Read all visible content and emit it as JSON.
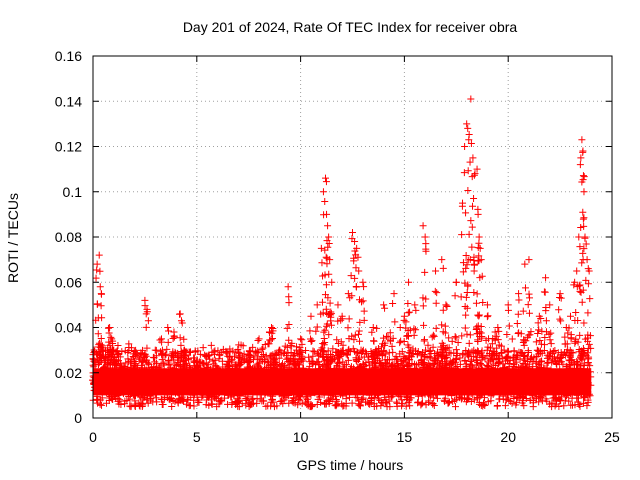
{
  "chart_data": {
    "type": "scatter",
    "title": "Day 201 of 2024, Rate Of TEC Index for receiver obra",
    "xlabel": "GPS time / hours",
    "ylabel": "ROTI / TECUs",
    "xlim": [
      0,
      25
    ],
    "ylim": [
      0,
      0.16
    ],
    "xticks": [
      0,
      5,
      10,
      15,
      20,
      25
    ],
    "xtick_labels": [
      "0",
      "5",
      "10",
      "15",
      "20",
      "25"
    ],
    "yticks": [
      0,
      0.02,
      0.04,
      0.06,
      0.08,
      0.1,
      0.12,
      0.14,
      0.16
    ],
    "ytick_labels": [
      "0",
      "0.02",
      "0.04",
      "0.06",
      "0.08",
      "0.1",
      "0.12",
      "0.14",
      "0.16"
    ],
    "grid": true,
    "marker": "+",
    "color": "#ff0000",
    "series": [
      {
        "name": "ROTI",
        "x": [
          0.05,
          0.2,
          0.3,
          0.35,
          0.4,
          0.5,
          0.8,
          0.9,
          1.0,
          1.1,
          1.2,
          1.5,
          2.0,
          2.5,
          2.6,
          3.0,
          3.3,
          3.6,
          3.9,
          4.2,
          4.3,
          4.4,
          5.0,
          5.5,
          6.0,
          6.5,
          7.0,
          7.5,
          8.0,
          8.5,
          8.6,
          9.0,
          9.4,
          9.5,
          9.8,
          10.0,
          10.5,
          10.8,
          11.0,
          11.1,
          11.2,
          11.25,
          11.3,
          11.35,
          11.4,
          11.5,
          11.8,
          12.0,
          12.3,
          12.5,
          12.6,
          12.7,
          12.8,
          13.0,
          13.5,
          14.0,
          14.5,
          14.8,
          15.0,
          15.2,
          15.5,
          15.9,
          16.0,
          16.5,
          16.8,
          17.0,
          17.5,
          17.8,
          17.9,
          18.0,
          18.05,
          18.1,
          18.2,
          18.3,
          18.4,
          18.5,
          18.55,
          18.6,
          18.65,
          18.7,
          19.0,
          19.5,
          20.0,
          20.5,
          20.8,
          21.0,
          21.5,
          21.8,
          22.0,
          22.5,
          22.8,
          23.0,
          23.2,
          23.3,
          23.4,
          23.5,
          23.55,
          23.6,
          23.65,
          23.7,
          23.8,
          23.9
        ],
        "y": [
          0.015,
          0.068,
          0.072,
          0.058,
          0.055,
          0.022,
          0.04,
          0.035,
          0.03,
          0.025,
          0.02,
          0.022,
          0.025,
          0.052,
          0.048,
          0.03,
          0.035,
          0.04,
          0.038,
          0.046,
          0.042,
          0.03,
          0.025,
          0.02,
          0.022,
          0.025,
          0.02,
          0.028,
          0.035,
          0.038,
          0.04,
          0.03,
          0.058,
          0.032,
          0.03,
          0.035,
          0.045,
          0.05,
          0.075,
          0.1,
          0.106,
          0.09,
          0.085,
          0.08,
          0.07,
          0.06,
          0.05,
          0.045,
          0.055,
          0.082,
          0.078,
          0.075,
          0.065,
          0.06,
          0.04,
          0.05,
          0.055,
          0.04,
          0.045,
          0.06,
          0.05,
          0.085,
          0.08,
          0.065,
          0.07,
          0.05,
          0.06,
          0.095,
          0.12,
          0.13,
          0.128,
          0.123,
          0.141,
          0.115,
          0.108,
          0.11,
          0.09,
          0.08,
          0.075,
          0.07,
          0.05,
          0.04,
          0.05,
          0.055,
          0.068,
          0.07,
          0.045,
          0.062,
          0.05,
          0.055,
          0.04,
          0.045,
          0.06,
          0.065,
          0.08,
          0.115,
          0.123,
          0.118,
          0.1,
          0.08,
          0.07,
          0.065
        ]
      }
    ],
    "baseline_band": {
      "y_min": 0.005,
      "y_max": 0.03,
      "x_range": [
        0,
        24
      ]
    }
  }
}
